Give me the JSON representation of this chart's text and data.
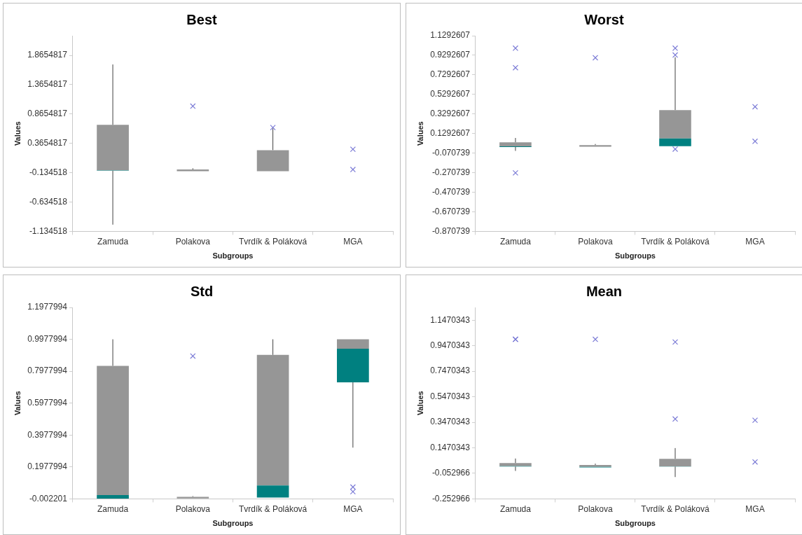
{
  "chart_data": [
    {
      "type": "box",
      "title": "Best",
      "xlabel": "Subgroups",
      "ylabel": "Values",
      "categories": [
        "Zamuda",
        "Polakova",
        "Tvrdík & Poláková",
        "MGA"
      ],
      "ylim": [
        -1.134518,
        2.2
      ],
      "yticks": [
        -1.134518,
        -0.634518,
        -0.134518,
        0.3654817,
        0.8654817,
        1.3654817,
        1.8654817
      ],
      "marker": "cross",
      "series": [
        {
          "type": "box",
          "color": "#969696",
          "colors": [
            "#008080",
            "#969696",
            "#969696",
            "#969696"
          ],
          "boxes": [
            {
              "low": -1.02,
              "q1": -0.1,
              "median": -0.095,
              "q3": 0.68,
              "high": 1.71
            },
            {
              "low": -0.11,
              "q1": -0.11,
              "median": -0.11,
              "q3": -0.08,
              "high": -0.06
            },
            {
              "low": -0.108,
              "q1": -0.108,
              "median": -0.108,
              "q3": 0.25,
              "high": 0.62
            },
            null
          ]
        },
        {
          "type": "scatter",
          "color": "#7b7bd6",
          "x": [
            "Polakova",
            "Tvrdík & Poláková",
            "MGA",
            "MGA"
          ],
          "values": [
            1.0,
            0.635,
            0.265,
            -0.08
          ]
        }
      ]
    },
    {
      "type": "box",
      "title": "Worst",
      "xlabel": "Subgroups",
      "ylabel": "Values",
      "categories": [
        "Zamuda",
        "Polakova",
        "Tvrdík & Poláková",
        "MGA"
      ],
      "ylim": [
        -0.870739,
        1.1292607
      ],
      "yticks": [
        -0.870739,
        -0.670739,
        -0.470739,
        -0.270739,
        -0.070739,
        0.1292607,
        0.3292607,
        0.5292607,
        0.7292607,
        0.9292607,
        1.1292607
      ],
      "marker": "cross",
      "series": [
        {
          "type": "box",
          "color": "#969696",
          "colors": [
            "#008080",
            "#969696",
            "#008080",
            "#969696"
          ],
          "boxes": [
            {
              "low": -0.048,
              "q1": -0.008,
              "median": -0.002,
              "q3": 0.039,
              "high": 0.084
            },
            {
              "low": -0.006,
              "q1": -0.006,
              "median": -0.006,
              "q3": 0.011,
              "high": 0.022
            },
            {
              "low": 0.0,
              "q1": 0.0,
              "median": 0.079,
              "q3": 0.369,
              "high": 0.909
            },
            null
          ]
        },
        {
          "type": "scatter",
          "color": "#7b7bd6",
          "x": [
            "Zamuda",
            "Zamuda",
            "Zamuda",
            "Polakova",
            "Tvrdík & Poláková",
            "Tvrdík & Poláková",
            "Tvrdík & Poláková",
            "MGA",
            "MGA"
          ],
          "values": [
            1.002,
            0.802,
            -0.273,
            0.904,
            1.002,
            0.932,
            -0.03,
            0.403,
            0.05
          ]
        }
      ]
    },
    {
      "type": "box",
      "title": "Std",
      "xlabel": "Subgroups",
      "ylabel": "Values",
      "categories": [
        "Zamuda",
        "Polakova",
        "Tvrdík & Poláková",
        "MGA"
      ],
      "ylim": [
        -0.002201,
        1.1977994
      ],
      "yticks": [
        -0.002201,
        0.1977994,
        0.3977994,
        0.5977994,
        0.7977994,
        0.9977994,
        1.1977994
      ],
      "marker": "cross",
      "series": [
        {
          "type": "box",
          "color": "#969696",
          "colors": [
            "#008080",
            "#969696",
            "#008080",
            "#008080"
          ],
          "boxes": [
            {
              "low": 0.0,
              "q1": 0.0,
              "median": 0.021,
              "q3": 0.831,
              "high": 0.998
            },
            {
              "low": 0.001,
              "q1": 0.001,
              "median": 0.001,
              "q3": 0.01,
              "high": 0.015
            },
            {
              "low": 0.006,
              "q1": 0.006,
              "median": 0.082,
              "q3": 0.9,
              "high": 0.998
            },
            {
              "low": 0.319,
              "q1": 0.728,
              "median": 0.939,
              "q3": 0.998,
              "high": 0.998
            }
          ]
        },
        {
          "type": "scatter",
          "color": "#7b7bd6",
          "x": [
            "Polakova",
            "MGA",
            "MGA"
          ],
          "values": [
            0.893,
            0.072,
            0.043
          ]
        }
      ]
    },
    {
      "type": "box",
      "title": "Mean",
      "xlabel": "Subgroups",
      "ylabel": "Values",
      "categories": [
        "Zamuda",
        "Polakova",
        "Tvrdík & Poláková",
        "MGA"
      ],
      "ylim": [
        -0.252966,
        1.2470343
      ],
      "yticks": [
        -0.252966,
        -0.052966,
        0.1470343,
        0.3470343,
        0.5470343,
        0.7470343,
        0.9470343,
        1.1470343
      ],
      "marker": "cross",
      "series": [
        {
          "type": "box",
          "color": "#969696",
          "colors": [
            "#008080",
            "#008080",
            "#008080",
            "#008080"
          ],
          "boxes": [
            {
              "low": -0.034,
              "q1": 0.0,
              "median": 0.003,
              "q3": 0.027,
              "high": 0.063
            },
            {
              "low": -0.006,
              "q1": -0.006,
              "median": -0.003,
              "q3": 0.013,
              "high": 0.023
            },
            {
              "low": -0.082,
              "q1": 0.0,
              "median": 0.002,
              "q3": 0.061,
              "high": 0.145
            },
            null
          ]
        },
        {
          "type": "scatter",
          "color": "#7b7bd6",
          "x": [
            "Zamuda",
            "Zamuda",
            "Polakova",
            "Tvrdík & Poláková",
            "Tvrdík & Poláková",
            "MGA",
            "MGA"
          ],
          "values": [
            0.997,
            0.997,
            0.997,
            0.976,
            0.373,
            0.363,
            0.036
          ]
        }
      ]
    }
  ]
}
